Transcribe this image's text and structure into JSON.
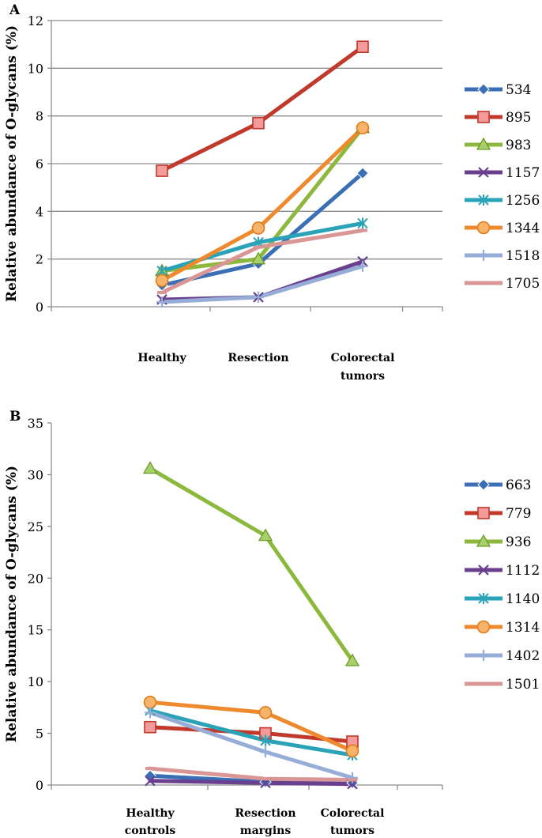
{
  "chart_data": [
    {
      "type": "line",
      "panel_label": "A",
      "title": "",
      "ylabel": "Relative abundance of O-glycans (%)",
      "xlabel": "",
      "ylim": [
        0,
        12
      ],
      "yticks": [
        0,
        2,
        4,
        6,
        8,
        10,
        12
      ],
      "grid": true,
      "legend_position": "right",
      "categories": [
        [
          "Healthy"
        ],
        [
          "Resection"
        ],
        [
          "Colorectal",
          "tumors"
        ]
      ],
      "series": [
        {
          "name": "534",
          "color": "#3a6fb6",
          "marker": "diamond",
          "values": [
            0.9,
            1.8,
            5.6
          ]
        },
        {
          "name": "895",
          "color": "#c0392b",
          "marker": "square",
          "values": [
            5.7,
            7.7,
            10.9
          ]
        },
        {
          "name": "983",
          "color": "#8db83e",
          "marker": "triangle",
          "values": [
            1.5,
            2.0,
            7.5
          ]
        },
        {
          "name": "1157",
          "color": "#6a3f8f",
          "marker": "x",
          "values": [
            0.3,
            0.4,
            1.9
          ]
        },
        {
          "name": "1256",
          "color": "#2aa2b8",
          "marker": "star",
          "values": [
            1.5,
            2.7,
            3.5
          ]
        },
        {
          "name": "1344",
          "color": "#ee8a2d",
          "marker": "circle",
          "values": [
            1.1,
            3.3,
            7.5
          ]
        },
        {
          "name": "1518",
          "color": "#96add8",
          "marker": "plus",
          "values": [
            0.2,
            0.4,
            1.7
          ]
        },
        {
          "name": "1705",
          "color": "#d99694",
          "marker": "dash",
          "values": [
            0.6,
            2.5,
            3.2
          ]
        }
      ]
    },
    {
      "type": "line",
      "panel_label": "B",
      "title": "",
      "ylabel": "Relative abundance of O-glycans (%)",
      "xlabel": "",
      "ylim": [
        0,
        35
      ],
      "yticks": [
        0,
        5,
        10,
        15,
        20,
        25,
        30,
        35
      ],
      "grid": false,
      "legend_position": "right",
      "categories": [
        [
          "Healthy",
          "controls"
        ],
        [
          "Resection",
          "margins"
        ],
        [
          "Colorectal",
          "tumors"
        ]
      ],
      "series": [
        {
          "name": "663",
          "color": "#3a6fb6",
          "marker": "diamond",
          "values": [
            0.9,
            0.3,
            0.2
          ]
        },
        {
          "name": "779",
          "color": "#c0392b",
          "marker": "square",
          "values": [
            5.6,
            5.0,
            4.2
          ]
        },
        {
          "name": "936",
          "color": "#8db83e",
          "marker": "triangle",
          "values": [
            30.6,
            24.1,
            12.0
          ]
        },
        {
          "name": "1112",
          "color": "#6a3f8f",
          "marker": "x",
          "values": [
            0.4,
            0.2,
            0.1
          ]
        },
        {
          "name": "1140",
          "color": "#2aa2b8",
          "marker": "star",
          "values": [
            7.2,
            4.3,
            2.9
          ]
        },
        {
          "name": "1314",
          "color": "#ee8a2d",
          "marker": "circle",
          "values": [
            8.0,
            7.0,
            3.3
          ]
        },
        {
          "name": "1402",
          "color": "#96add8",
          "marker": "plus",
          "values": [
            7.0,
            3.2,
            0.7
          ]
        },
        {
          "name": "1501",
          "color": "#d99694",
          "marker": "dash",
          "values": [
            1.6,
            0.6,
            0.5
          ]
        }
      ]
    }
  ]
}
